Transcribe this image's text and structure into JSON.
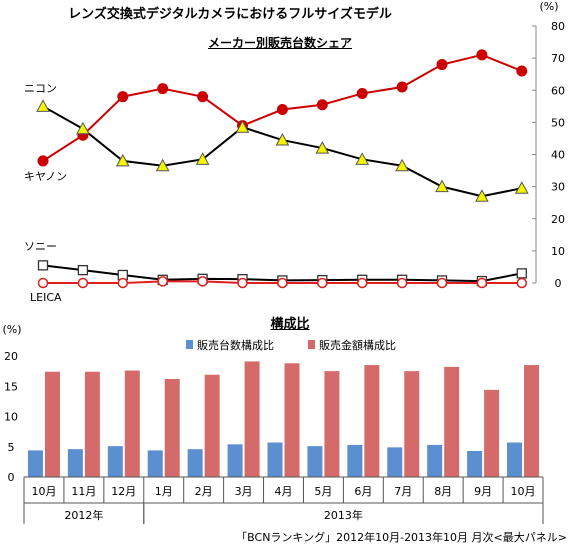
{
  "page": {
    "title": "レンズ交換式デジタルカメラにおけるフルサイズモデル",
    "source": "「BCNランキング」2012年10月-2013年10月 月次<最大パネル>"
  },
  "colors": {
    "canon": "#cc0000",
    "nikon_line": "#000000",
    "nikon_marker": "#f5f500",
    "leica": "#e02020",
    "units_bar": "#5b8fd0",
    "value_bar": "#d46a6a"
  },
  "chart_data": [
    {
      "type": "line",
      "title": "メーカー別販売台数シェア",
      "unit_label": "(%)",
      "ylim": [
        0,
        80
      ],
      "yticks": [
        0,
        10,
        20,
        30,
        40,
        50,
        60,
        70,
        80
      ],
      "axis_position": "right",
      "grid": false,
      "x": [
        "10月",
        "11月",
        "12月",
        "1月",
        "2月",
        "3月",
        "4月",
        "5月",
        "6月",
        "7月",
        "8月",
        "9月",
        "10月"
      ],
      "series": [
        {
          "name": "キヤノン",
          "color": "#cc0000",
          "marker": "circle-filled",
          "values": [
            38,
            46,
            58,
            60.5,
            58,
            49,
            54,
            55.5,
            59,
            61,
            68,
            71,
            66
          ]
        },
        {
          "name": "ニコン",
          "color": "#000000",
          "marker": "triangle",
          "values": [
            55,
            48,
            38,
            36.5,
            38.5,
            48.5,
            44.5,
            42,
            38.5,
            36.5,
            30,
            27,
            29.5
          ]
        },
        {
          "name": "ソニー",
          "color": "#000000",
          "marker": "square-open",
          "values": [
            5.5,
            4,
            2.5,
            1,
            1.3,
            1.2,
            0.8,
            0.9,
            1,
            1,
            0.8,
            0.6,
            3
          ]
        },
        {
          "name": "LEICA",
          "color": "#e02020",
          "marker": "circle-open",
          "values": [
            0,
            0,
            0,
            0.5,
            0.5,
            0,
            0,
            0,
            0,
            0,
            0,
            0,
            0
          ]
        }
      ]
    },
    {
      "type": "bar",
      "title": "構成比",
      "unit_label": "(%)",
      "ylim": [
        0,
        20
      ],
      "yticks": [
        0,
        5,
        10,
        15,
        20
      ],
      "grid": false,
      "legend_position": "top",
      "categories": [
        "10月",
        "11月",
        "12月",
        "1月",
        "2月",
        "3月",
        "4月",
        "5月",
        "6月",
        "7月",
        "8月",
        "9月",
        "10月"
      ],
      "year_groups": [
        {
          "label": "2012年",
          "span": 3
        },
        {
          "label": "2013年",
          "span": 10
        }
      ],
      "series": [
        {
          "name": "販売台数構成比",
          "color": "#5b8fd0",
          "values": [
            4.4,
            4.6,
            5.1,
            4.4,
            4.6,
            5.4,
            5.7,
            5.1,
            5.3,
            4.9,
            5.3,
            4.3,
            5.7
          ]
        },
        {
          "name": "販売金額構成比",
          "color": "#d46a6a",
          "values": [
            17.4,
            17.4,
            17.6,
            16.2,
            16.9,
            19.1,
            18.8,
            17.5,
            18.5,
            17.5,
            18.2,
            14.4,
            18.5
          ]
        }
      ]
    }
  ]
}
